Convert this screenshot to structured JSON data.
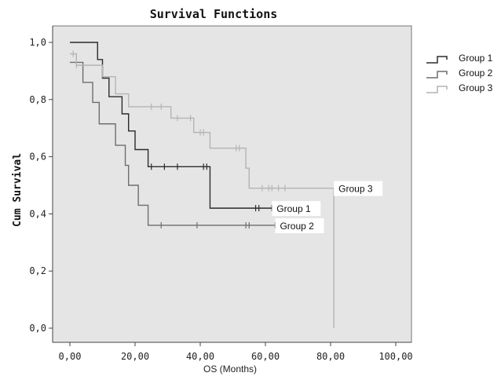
{
  "chart_data": {
    "type": "line",
    "title": "Survival Functions",
    "xlabel": "OS (Months)",
    "ylabel": "Cum Survival",
    "xlim": [
      0,
      100
    ],
    "ylim": [
      0,
      1
    ],
    "x_ticks": [
      0,
      20,
      40,
      60,
      80,
      100
    ],
    "x_tick_labels": [
      "0,00",
      "20,00",
      "40,00",
      "60,00",
      "80,00",
      "100,00"
    ],
    "y_ticks": [
      0,
      0.2,
      0.4,
      0.6,
      0.8,
      1.0
    ],
    "y_tick_labels": [
      "0,0",
      "0,2",
      "0,4",
      "0,6",
      "0,8",
      "1,0"
    ],
    "grid": false,
    "legend_position": "right",
    "series": [
      {
        "name": "Group 1",
        "color": "#2b2b2b",
        "steps": [
          [
            0,
            1.0
          ],
          [
            8.5,
            0.94
          ],
          [
            10,
            0.875
          ],
          [
            12,
            0.81
          ],
          [
            16,
            0.75
          ],
          [
            18,
            0.69
          ],
          [
            20,
            0.625
          ],
          [
            24,
            0.565
          ],
          [
            43,
            0.42
          ],
          [
            62,
            0.42
          ]
        ],
        "censored": [
          25,
          29,
          33,
          41,
          42,
          57,
          58,
          62
        ]
      },
      {
        "name": "Group 2",
        "color": "#6e6e6e",
        "steps": [
          [
            0,
            0.93
          ],
          [
            4,
            0.86
          ],
          [
            7,
            0.79
          ],
          [
            9,
            0.715
          ],
          [
            14,
            0.64
          ],
          [
            17,
            0.57
          ],
          [
            18,
            0.5
          ],
          [
            21,
            0.43
          ],
          [
            24,
            0.36
          ],
          [
            63,
            0.36
          ]
        ],
        "censored": [
          28,
          39,
          54,
          55,
          63
        ]
      },
      {
        "name": "Group 3",
        "color": "#b4b4b4",
        "steps": [
          [
            0,
            0.96
          ],
          [
            2,
            0.92
          ],
          [
            10,
            0.88
          ],
          [
            14,
            0.82
          ],
          [
            18,
            0.775
          ],
          [
            31,
            0.735
          ],
          [
            38,
            0.685
          ],
          [
            43,
            0.63
          ],
          [
            54,
            0.56
          ],
          [
            55,
            0.49
          ],
          [
            81,
            0.0
          ]
        ],
        "censored": [
          1,
          2,
          25,
          28,
          33,
          37,
          40,
          41,
          51,
          52,
          59,
          61,
          62,
          64,
          66
        ]
      }
    ],
    "curve_labels": [
      {
        "text": "Group 3",
        "series": "Group 3"
      },
      {
        "text": "Group 1",
        "series": "Group 1"
      },
      {
        "text": "Group 2",
        "series": "Group 2"
      }
    ]
  }
}
